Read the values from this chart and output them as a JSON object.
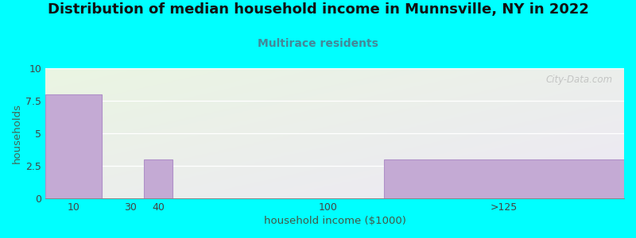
{
  "title": "Distribution of median household income in Munnsville, NY in 2022",
  "subtitle": "Multirace residents",
  "xlabel": "household income ($1000)",
  "ylabel": "households",
  "categories": [
    "10",
    "30",
    "40",
    "100",
    ">125"
  ],
  "cat_positions": [
    10,
    30,
    40,
    100,
    162.5
  ],
  "cat_widths": [
    20,
    10,
    10,
    60,
    85
  ],
  "values": [
    8,
    0,
    3,
    0,
    3
  ],
  "bar_color": "#c4aad4",
  "bar_edge_color": "#b090c8",
  "ylim": [
    0,
    10
  ],
  "yticks": [
    0,
    2.5,
    5,
    7.5,
    10
  ],
  "xlim": [
    0,
    205
  ],
  "xtick_positions": [
    10,
    30,
    40,
    100,
    162.5
  ],
  "xtick_labels": [
    "10",
    "30",
    "40",
    "100",
    ">125"
  ],
  "background_color": "#00ffff",
  "plot_bg_start": "#eaf5e2",
  "plot_bg_end": "#ede8f5",
  "title_fontsize": 13,
  "subtitle_fontsize": 10,
  "subtitle_color": "#448899",
  "ylabel_color": "#446655",
  "xlabel_color": "#445544",
  "tick_color": "#444444",
  "watermark": "City-Data.com"
}
